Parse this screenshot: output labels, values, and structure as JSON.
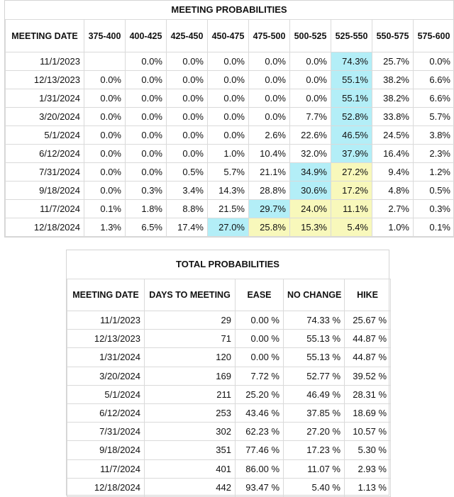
{
  "meeting": {
    "title": "MEETING PROBABILITIES",
    "headers": [
      "MEETING DATE",
      "375-400",
      "400-425",
      "425-450",
      "450-475",
      "475-500",
      "500-525",
      "525-550",
      "550-575",
      "575-600"
    ],
    "rows": [
      {
        "cells": [
          "11/1/2023",
          "",
          "0.0%",
          "0.0%",
          "0.0%",
          "0.0%",
          "0.0%",
          "74.3%",
          "25.7%",
          "0.0%"
        ],
        "highlights": [
          7
        ]
      },
      {
        "cells": [
          "12/13/2023",
          "0.0%",
          "0.0%",
          "0.0%",
          "0.0%",
          "0.0%",
          "0.0%",
          "55.1%",
          "38.2%",
          "6.6%"
        ],
        "highlights": [
          7
        ]
      },
      {
        "cells": [
          "1/31/2024",
          "0.0%",
          "0.0%",
          "0.0%",
          "0.0%",
          "0.0%",
          "0.0%",
          "55.1%",
          "38.2%",
          "6.6%"
        ],
        "highlights": [
          7
        ]
      },
      {
        "cells": [
          "3/20/2024",
          "0.0%",
          "0.0%",
          "0.0%",
          "0.0%",
          "0.0%",
          "7.7%",
          "52.8%",
          "33.8%",
          "5.7%"
        ],
        "highlights": [
          7
        ]
      },
      {
        "cells": [
          "5/1/2024",
          "0.0%",
          "0.0%",
          "0.0%",
          "0.0%",
          "2.6%",
          "22.6%",
          "46.5%",
          "24.5%",
          "3.8%"
        ],
        "highlights": [
          7
        ]
      },
      {
        "cells": [
          "6/12/2024",
          "0.0%",
          "0.0%",
          "0.0%",
          "1.0%",
          "10.4%",
          "32.0%",
          "37.9%",
          "16.4%",
          "2.3%"
        ],
        "highlights": [
          7
        ]
      },
      {
        "cells": [
          "7/31/2024",
          "0.0%",
          "0.0%",
          "0.5%",
          "5.7%",
          "21.1%",
          "34.9%",
          "27.2%",
          "9.4%",
          "1.2%"
        ],
        "highlights": [
          6
        ],
        "yellow": [
          7
        ]
      },
      {
        "cells": [
          "9/18/2024",
          "0.0%",
          "0.3%",
          "3.4%",
          "14.3%",
          "28.8%",
          "30.6%",
          "17.2%",
          "4.8%",
          "0.5%"
        ],
        "highlights": [
          6
        ],
        "yellow": [
          7
        ]
      },
      {
        "cells": [
          "11/7/2024",
          "0.1%",
          "1.8%",
          "8.8%",
          "21.5%",
          "29.7%",
          "24.0%",
          "11.1%",
          "2.7%",
          "0.3%"
        ],
        "highlights": [
          5
        ],
        "yellow": [
          6,
          7
        ]
      },
      {
        "cells": [
          "12/18/2024",
          "1.3%",
          "6.5%",
          "17.4%",
          "27.0%",
          "25.8%",
          "15.3%",
          "5.4%",
          "1.0%",
          "0.1%"
        ],
        "highlights": [
          4
        ],
        "yellow": [
          5,
          6,
          7
        ]
      }
    ]
  },
  "total": {
    "title": "TOTAL PROBABILITIES",
    "headers": [
      "MEETING DATE",
      "DAYS TO MEETING",
      "EASE",
      "NO CHANGE",
      "HIKE"
    ],
    "rows": [
      [
        "11/1/2023",
        "29",
        "0.00 %",
        "74.33 %",
        "25.67 %"
      ],
      [
        "12/13/2023",
        "71",
        "0.00 %",
        "55.13 %",
        "44.87 %"
      ],
      [
        "1/31/2024",
        "120",
        "0.00 %",
        "55.13 %",
        "44.87 %"
      ],
      [
        "3/20/2024",
        "169",
        "7.72 %",
        "52.77 %",
        "39.52 %"
      ],
      [
        "5/1/2024",
        "211",
        "25.20 %",
        "46.49 %",
        "28.31 %"
      ],
      [
        "6/12/2024",
        "253",
        "43.46 %",
        "37.85 %",
        "18.69 %"
      ],
      [
        "7/31/2024",
        "302",
        "62.23 %",
        "27.20 %",
        "10.57 %"
      ],
      [
        "9/18/2024",
        "351",
        "77.46 %",
        "17.23 %",
        "5.30 %"
      ],
      [
        "11/7/2024",
        "401",
        "86.00 %",
        "11.07 %",
        "2.93 %"
      ],
      [
        "12/18/2024",
        "442",
        "93.47 %",
        "5.40 %",
        "1.13 %"
      ]
    ]
  },
  "colors": {
    "highlight_blue": "#b3eef7",
    "highlight_yellow": "#f8f8bb"
  }
}
